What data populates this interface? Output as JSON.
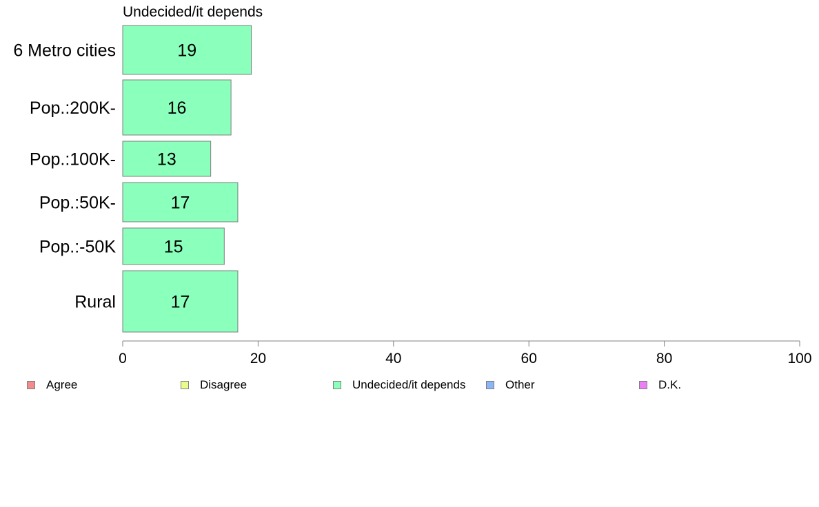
{
  "chart_data": {
    "type": "bar",
    "orientation": "horizontal",
    "title": "Undecided/it depends",
    "categories": [
      "6 Metro cities",
      "Pop.:200K-",
      "Pop.:100K-",
      "Pop.:50K-",
      "Pop.:-50K",
      "Rural"
    ],
    "values": [
      19,
      16,
      13,
      17,
      15,
      17
    ],
    "data_labels": [
      "19",
      "16",
      "13",
      "17",
      "15",
      "17"
    ],
    "xlim": [
      0,
      100
    ],
    "xticks": [
      "0",
      "20",
      "40",
      "60",
      "80",
      "100"
    ],
    "xlabel": "",
    "ylabel": "",
    "grid": false,
    "bar_color": "#8bffbc",
    "bar_border_color": "#7f7f7f",
    "legend_position": "bottom",
    "legend": [
      {
        "label": "Agree",
        "color": "#f28b8b"
      },
      {
        "label": "Disagree",
        "color": "#e8fc8b"
      },
      {
        "label": "Undecided/it depends",
        "color": "#8bffbc"
      },
      {
        "label": "Other",
        "color": "#8bb5f5"
      },
      {
        "label": "D.K.",
        "color": "#eb80f5"
      }
    ]
  }
}
